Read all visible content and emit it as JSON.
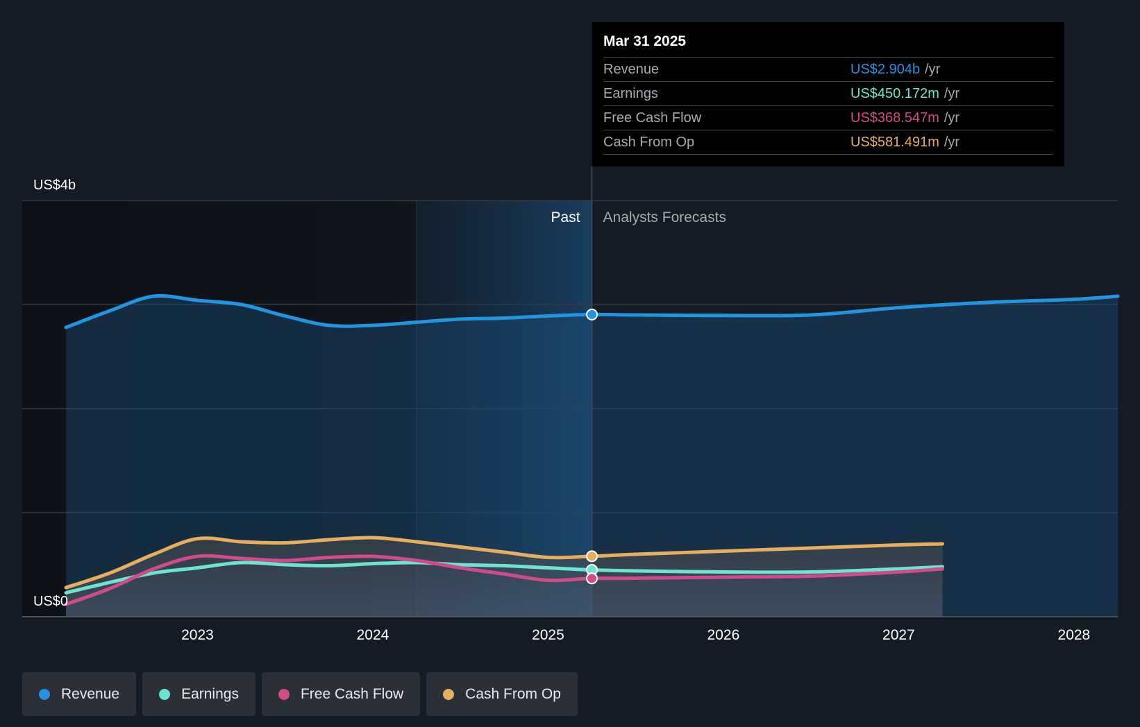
{
  "colors": {
    "revenue": "#2394df",
    "earnings": "#6ee3cf",
    "fcf": "#d14b89",
    "cfo": "#e8ae5f",
    "grid": "#323a45",
    "axis_text": "#ffffff",
    "muted_text": "#a7abb0"
  },
  "tooltip": {
    "date": "Mar 31 2025",
    "rows": [
      {
        "label": "Revenue",
        "value": "US$2.904b",
        "unit": "/yr",
        "color": "#2394df"
      },
      {
        "label": "Earnings",
        "value": "US$450.172m",
        "unit": "/yr",
        "color": "#6ee3cf"
      },
      {
        "label": "Free Cash Flow",
        "value": "US$368.547m",
        "unit": "/yr",
        "color": "#d14b89"
      },
      {
        "label": "Cash From Op",
        "value": "US$581.491m",
        "unit": "/yr",
        "color": "#e8ae5f"
      }
    ]
  },
  "legend": [
    {
      "label": "Revenue",
      "color": "#2394df",
      "icon": "revenue-dot-icon"
    },
    {
      "label": "Earnings",
      "color": "#6ee3cf",
      "icon": "earnings-dot-icon"
    },
    {
      "label": "Free Cash Flow",
      "color": "#d14b89",
      "icon": "fcf-dot-icon"
    },
    {
      "label": "Cash From Op",
      "color": "#e8ae5f",
      "icon": "cfo-dot-icon"
    }
  ],
  "chart_data": {
    "type": "line",
    "y_unit": "USD billions",
    "ylim": [
      0,
      4
    ],
    "xlim": [
      2022.0,
      2028.25
    ],
    "y_tick_labels": [
      {
        "value": 4,
        "label": "US$4b"
      },
      {
        "value": 0,
        "label": "US$0"
      }
    ],
    "y_gridlines": [
      0,
      1,
      2,
      3,
      4
    ],
    "x_ticks": [
      {
        "value": 2023,
        "label": "2023"
      },
      {
        "value": 2024,
        "label": "2024"
      },
      {
        "value": 2025,
        "label": "2025"
      },
      {
        "value": 2026,
        "label": "2026"
      },
      {
        "value": 2027,
        "label": "2027"
      },
      {
        "value": 2028,
        "label": "2028"
      }
    ],
    "past_label": "Past",
    "forecast_label": "Analysts Forecasts",
    "divider_x": 2025.25,
    "past_highlight_start": 2024.25,
    "series": [
      {
        "name": "Revenue",
        "key": "revenue",
        "points": [
          [
            2022.25,
            2.78
          ],
          [
            2022.5,
            2.94
          ],
          [
            2022.75,
            3.08
          ],
          [
            2023.0,
            3.04
          ],
          [
            2023.25,
            3.0
          ],
          [
            2023.5,
            2.89
          ],
          [
            2023.75,
            2.8
          ],
          [
            2024.0,
            2.8
          ],
          [
            2024.25,
            2.83
          ],
          [
            2024.5,
            2.86
          ],
          [
            2024.75,
            2.87
          ],
          [
            2025.0,
            2.89
          ],
          [
            2025.25,
            2.904
          ],
          [
            2025.5,
            2.9
          ],
          [
            2026.0,
            2.895
          ],
          [
            2026.5,
            2.9
          ],
          [
            2027.0,
            2.97
          ],
          [
            2027.5,
            3.02
          ],
          [
            2028.0,
            3.05
          ],
          [
            2028.25,
            3.08
          ]
        ]
      },
      {
        "name": "Earnings",
        "key": "earnings",
        "points": [
          [
            2022.25,
            0.23
          ],
          [
            2022.5,
            0.33
          ],
          [
            2022.75,
            0.42
          ],
          [
            2023.0,
            0.47
          ],
          [
            2023.25,
            0.52
          ],
          [
            2023.5,
            0.5
          ],
          [
            2023.75,
            0.49
          ],
          [
            2024.0,
            0.51
          ],
          [
            2024.25,
            0.52
          ],
          [
            2024.5,
            0.5
          ],
          [
            2024.75,
            0.49
          ],
          [
            2025.0,
            0.47
          ],
          [
            2025.25,
            0.45
          ],
          [
            2025.5,
            0.44
          ],
          [
            2026.0,
            0.43
          ],
          [
            2026.5,
            0.43
          ],
          [
            2027.0,
            0.46
          ],
          [
            2027.25,
            0.48
          ]
        ]
      },
      {
        "name": "Free Cash Flow",
        "key": "fcf",
        "points": [
          [
            2022.25,
            0.12
          ],
          [
            2022.5,
            0.27
          ],
          [
            2022.75,
            0.46
          ],
          [
            2023.0,
            0.58
          ],
          [
            2023.25,
            0.56
          ],
          [
            2023.5,
            0.54
          ],
          [
            2023.75,
            0.57
          ],
          [
            2024.0,
            0.58
          ],
          [
            2024.25,
            0.54
          ],
          [
            2024.5,
            0.47
          ],
          [
            2024.75,
            0.41
          ],
          [
            2025.0,
            0.35
          ],
          [
            2025.25,
            0.368
          ],
          [
            2025.5,
            0.37
          ],
          [
            2026.0,
            0.38
          ],
          [
            2026.5,
            0.39
          ],
          [
            2027.0,
            0.43
          ],
          [
            2027.25,
            0.46
          ]
        ]
      },
      {
        "name": "Cash From Op",
        "key": "cfo",
        "points": [
          [
            2022.25,
            0.28
          ],
          [
            2022.5,
            0.42
          ],
          [
            2022.75,
            0.6
          ],
          [
            2023.0,
            0.75
          ],
          [
            2023.25,
            0.72
          ],
          [
            2023.5,
            0.71
          ],
          [
            2023.75,
            0.74
          ],
          [
            2024.0,
            0.76
          ],
          [
            2024.25,
            0.72
          ],
          [
            2024.5,
            0.67
          ],
          [
            2024.75,
            0.62
          ],
          [
            2025.0,
            0.57
          ],
          [
            2025.25,
            0.581
          ],
          [
            2025.5,
            0.6
          ],
          [
            2026.0,
            0.63
          ],
          [
            2026.5,
            0.66
          ],
          [
            2027.0,
            0.69
          ],
          [
            2027.25,
            0.7
          ]
        ]
      }
    ]
  }
}
